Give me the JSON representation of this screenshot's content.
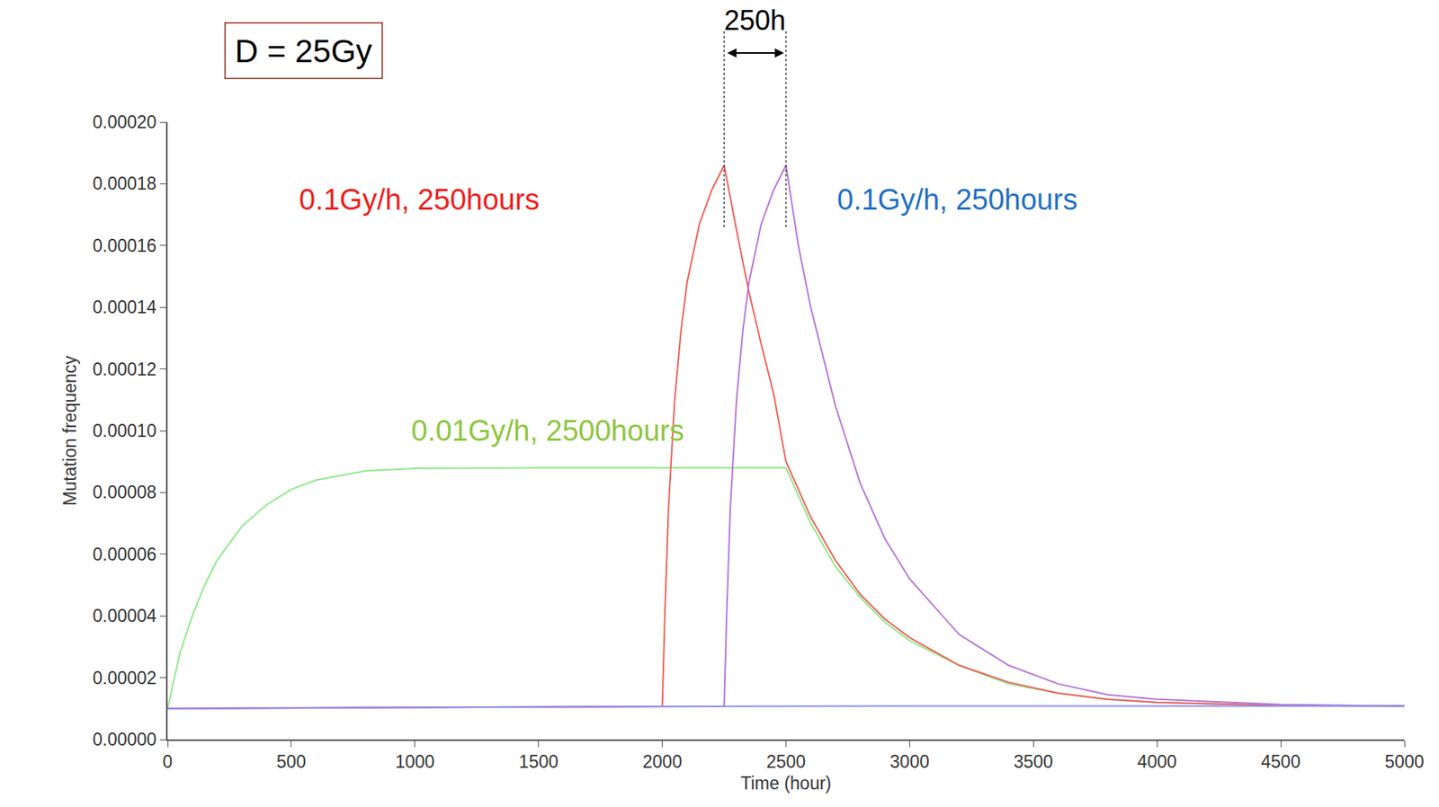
{
  "chart_data": {
    "type": "line",
    "x_label": "Time (hour)",
    "y_label": "Mutation frequency",
    "xlim": [
      0,
      5000
    ],
    "xticks": [
      0,
      500,
      1000,
      1500,
      2000,
      2500,
      3000,
      3500,
      4000,
      4500,
      5000
    ],
    "ylim": [
      0,
      0.0002
    ],
    "yticks": [
      {
        "value": 0,
        "label": "0.00000"
      },
      {
        "value": 2e-05,
        "label": "0.00002"
      },
      {
        "value": 4e-05,
        "label": "0.00004"
      },
      {
        "value": 6e-05,
        "label": "0.00006"
      },
      {
        "value": 8e-05,
        "label": "0.00008"
      },
      {
        "value": 0.0001,
        "label": "0.00010"
      },
      {
        "value": 0.00012,
        "label": "0.00012"
      },
      {
        "value": 0.00014,
        "label": "0.00014"
      },
      {
        "value": 0.00016,
        "label": "0.00016"
      },
      {
        "value": 0.00018,
        "label": "0.00018"
      },
      {
        "value": 0.0002,
        "label": "0.00020"
      }
    ],
    "grid": false,
    "series": [
      {
        "color": "#8fe88a",
        "x": [
          0,
          50,
          100,
          150,
          200,
          300,
          400,
          500,
          600,
          800,
          1000,
          1500,
          2000,
          2500,
          2600,
          2700,
          2800,
          2900,
          3000,
          3200,
          3400,
          3600,
          3800,
          4000,
          4500,
          5000
        ],
        "values": [
          1e-05,
          2.8e-05,
          4e-05,
          5e-05,
          5.8e-05,
          6.9e-05,
          7.6e-05,
          8.1e-05,
          8.4e-05,
          8.7e-05,
          8.78e-05,
          8.8e-05,
          8.8e-05,
          8.8e-05,
          7e-05,
          5.6e-05,
          4.6e-05,
          3.8e-05,
          3.2e-05,
          2.4e-05,
          1.8e-05,
          1.5e-05,
          1.3e-05,
          1.2e-05,
          1.1e-05,
          1.08e-05
        ]
      },
      {
        "color": "#f0605a",
        "x": [
          0,
          1000,
          2000,
          2010,
          2025,
          2050,
          2075,
          2100,
          2150,
          2200,
          2250,
          2300,
          2350,
          2400,
          2450,
          2500,
          2600,
          2700,
          2800,
          2900,
          3000,
          3200,
          3400,
          3600,
          3800,
          4000,
          4500,
          5000
        ],
        "values": [
          1e-05,
          1.04e-05,
          1.07e-05,
          4e-05,
          7.5e-05,
          0.00011,
          0.000132,
          0.000148,
          0.000167,
          0.000178,
          0.000186,
          0.000165,
          0.000145,
          0.000128,
          0.000112,
          9e-05,
          7.2e-05,
          5.8e-05,
          4.7e-05,
          3.9e-05,
          3.3e-05,
          2.4e-05,
          1.85e-05,
          1.5e-05,
          1.3e-05,
          1.2e-05,
          1.1e-05,
          1.08e-05
        ]
      },
      {
        "color": "#b576d8",
        "x": [
          0,
          1000,
          2250,
          2260,
          2275,
          2300,
          2325,
          2350,
          2400,
          2450,
          2500,
          2550,
          2600,
          2700,
          2800,
          2900,
          3000,
          3200,
          3400,
          3600,
          3800,
          4000,
          4500,
          5000
        ],
        "values": [
          1e-05,
          1.04e-05,
          1.07e-05,
          4e-05,
          7.5e-05,
          0.00011,
          0.000132,
          0.000148,
          0.000167,
          0.000178,
          0.000186,
          0.00016,
          0.00014,
          0.000108,
          8.3e-05,
          6.5e-05,
          5.2e-05,
          3.4e-05,
          2.4e-05,
          1.8e-05,
          1.45e-05,
          1.3e-05,
          1.13e-05,
          1.08e-05
        ]
      },
      {
        "color": "#8a8cf5",
        "x": [
          0,
          1000,
          2000,
          3000,
          4000,
          5000
        ],
        "values": [
          1e-05,
          1.04e-05,
          1.07e-05,
          1.08e-05,
          1.08e-05,
          1.08e-05
        ]
      }
    ],
    "annotations": [
      {
        "text": "0.1Gy/h, 250hours",
        "x": 1017,
        "y": 0.000175,
        "color": "#f01c1c"
      },
      {
        "text": "0.1Gy/h, 250hours",
        "x": 3193,
        "y": 0.000175,
        "color": "#1f6fc6"
      },
      {
        "text": "0.01Gy/h, 2500hours",
        "x": 1537,
        "y": 0.0001,
        "color": "#8cc63f"
      }
    ],
    "box_label": {
      "text": "D = 25Gy",
      "color": "#8b2a1a"
    },
    "bracket": {
      "text": "250h",
      "x0": 2250,
      "x1": 2500
    }
  }
}
